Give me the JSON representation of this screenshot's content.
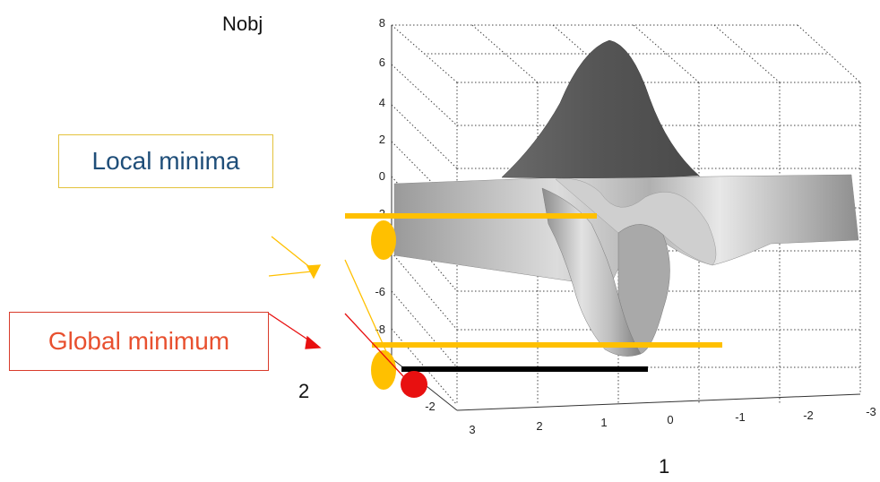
{
  "labels": {
    "z_axis": "Nobj",
    "local_minima": "Local minima",
    "global_minimum": "Global minimum",
    "axis_2": "2",
    "axis_1": "1"
  },
  "ticks": {
    "z": [
      "8",
      "6",
      "4",
      "2",
      "0",
      "-2",
      "-4",
      "-6",
      "-8"
    ],
    "x": [
      "3",
      "2",
      "1",
      "0",
      "-1",
      "-2",
      "-3"
    ],
    "y": [
      "-2"
    ]
  },
  "colors": {
    "local_minima_marker": "#ffc000",
    "global_minimum_marker": "#e81010",
    "global_level_line": "#000000",
    "local_arrow": "#ffc000",
    "global_arrow": "#e81010",
    "surface_peak": "#5c5c5c",
    "surface_light": "#e6e6e6",
    "surface_mid": "#a8a8a8",
    "local_box_border": "#e3c23c",
    "global_box_border": "#d93b2b",
    "local_text": "#1f4e79",
    "global_text": "#e8502f"
  }
}
